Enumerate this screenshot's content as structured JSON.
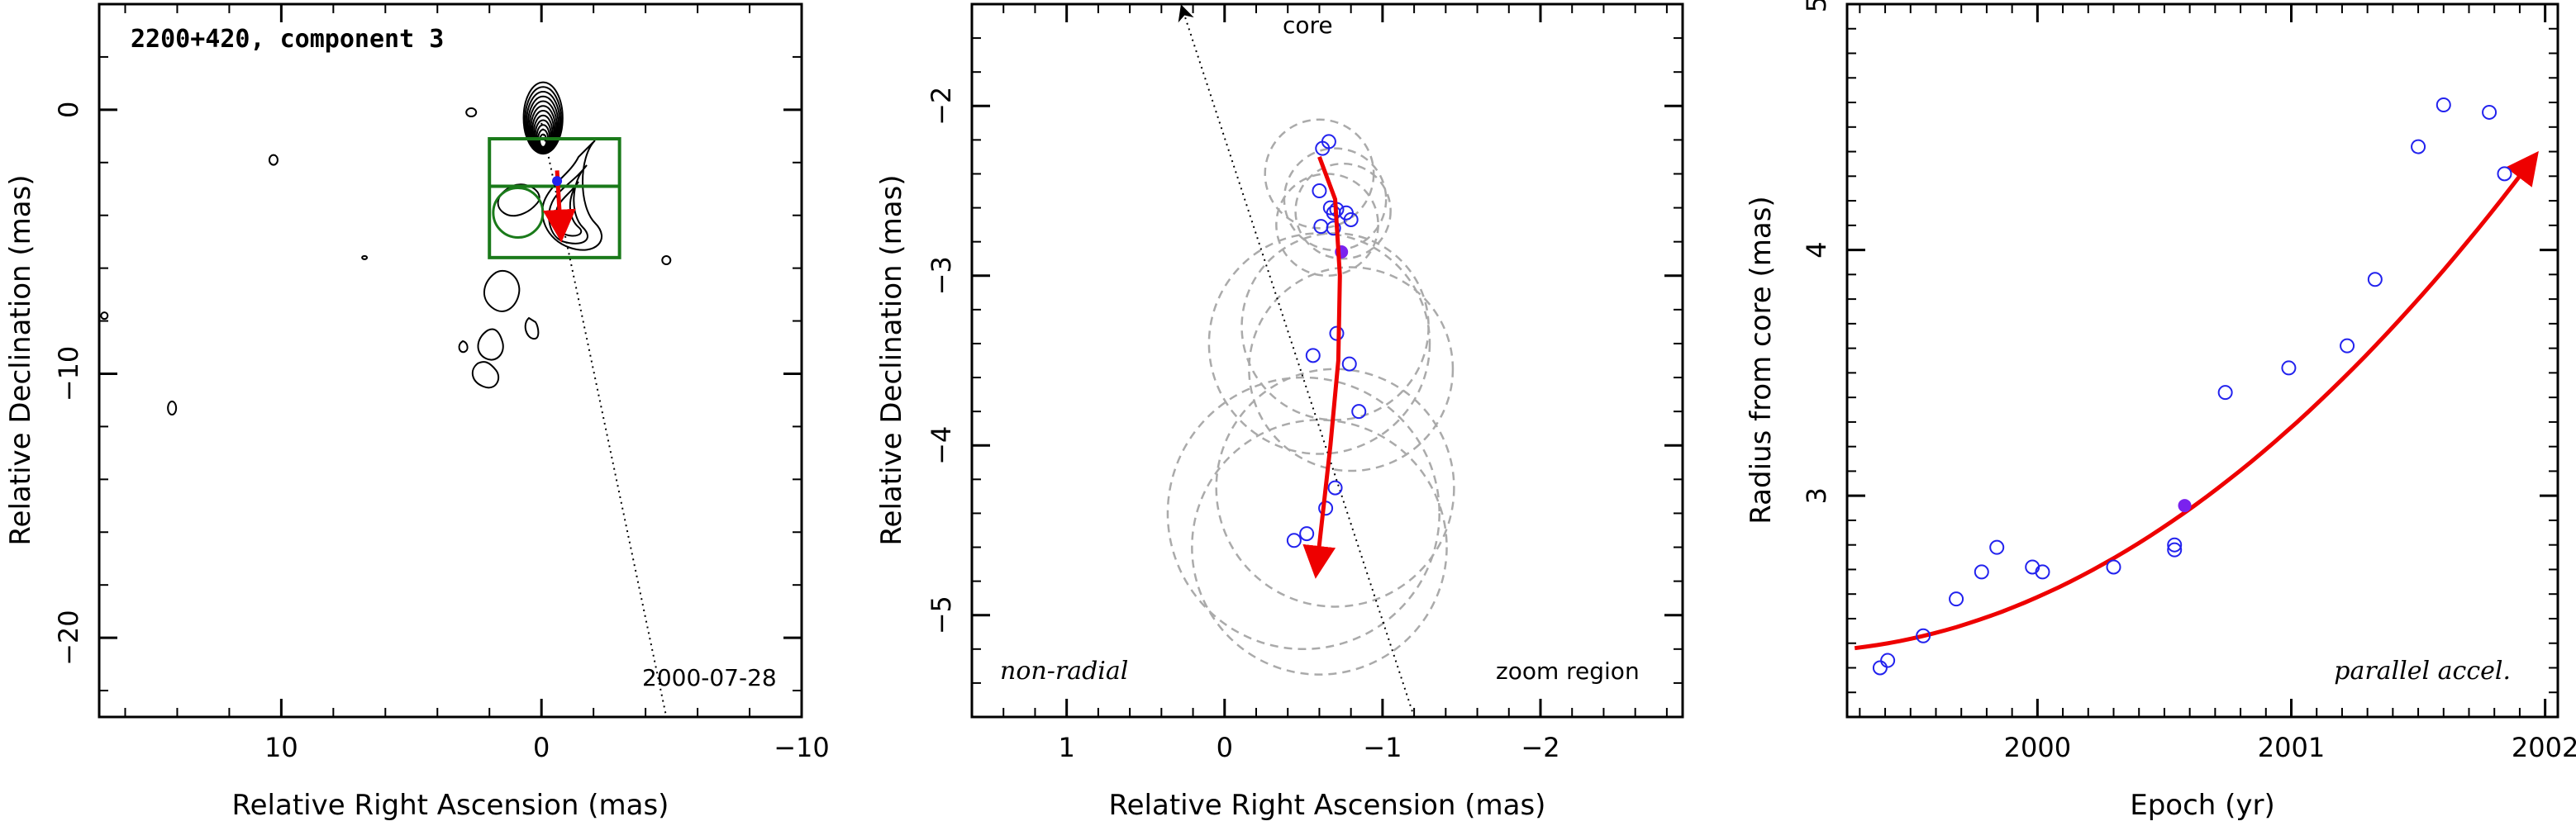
{
  "chart_data": [
    {
      "type": "contour",
      "title": "2200+420, component 3",
      "xlabel": "Relative Right Ascension (mas)",
      "ylabel": "Relative Declination (mas)",
      "xlim": [
        17,
        -10
      ],
      "ylim": [
        -23,
        4
      ],
      "xticks": [
        10,
        0,
        -10
      ],
      "yticks": [
        0,
        -10,
        -20
      ],
      "annotations": {
        "date": "2000-07-28"
      },
      "contour_peak": [
        0,
        0
      ],
      "zoom_box": {
        "x": [
          2,
          -3
        ],
        "y": [
          -1.1,
          -5.6
        ],
        "divider_y": -2.9
      },
      "core_line": {
        "x": [
          0.0,
          -4.8
        ],
        "y": [
          -0.5,
          -23
        ]
      },
      "track": {
        "start": [
          -0.6,
          -2.3
        ],
        "end": [
          -0.75,
          -4.8
        ]
      },
      "current_position": [
        -0.6,
        -2.7
      ]
    },
    {
      "type": "scatter",
      "xlabel": "Relative Right Ascension (mas)",
      "ylabel": "Relative Declination (mas)",
      "xlim": [
        1.6,
        -2.9
      ],
      "ylim": [
        -5.6,
        -1.4
      ],
      "xticks": [
        1,
        0,
        -1,
        -2
      ],
      "yticks": [
        -2,
        -3,
        -4,
        -5
      ],
      "annotations": {
        "left": "non-radial",
        "right": "zoom region",
        "arrow": "core"
      },
      "core_line": {
        "x": [
          0.27,
          -1.2
        ],
        "y": [
          -1.4,
          -5.6
        ]
      },
      "points": [
        {
          "x": -0.62,
          "y": -2.25
        },
        {
          "x": -0.66,
          "y": -2.21
        },
        {
          "x": -0.6,
          "y": -2.5
        },
        {
          "x": -0.67,
          "y": -2.6
        },
        {
          "x": -0.69,
          "y": -2.63
        },
        {
          "x": -0.71,
          "y": -2.61
        },
        {
          "x": -0.77,
          "y": -2.63
        },
        {
          "x": -0.8,
          "y": -2.67
        },
        {
          "x": -0.61,
          "y": -2.71
        },
        {
          "x": -0.69,
          "y": -2.72
        },
        {
          "x": -0.71,
          "y": -3.34
        },
        {
          "x": -0.56,
          "y": -3.47
        },
        {
          "x": -0.79,
          "y": -3.52
        },
        {
          "x": -0.85,
          "y": -3.8
        },
        {
          "x": -0.7,
          "y": -4.25
        },
        {
          "x": -0.64,
          "y": -4.37
        },
        {
          "x": -0.52,
          "y": -4.52
        },
        {
          "x": -0.44,
          "y": -4.56
        }
      ],
      "current_point": {
        "x": -0.74,
        "y": -2.86
      },
      "components": [
        {
          "x": -0.6,
          "y": -2.4,
          "r": 0.32
        },
        {
          "x": -0.7,
          "y": -2.55,
          "r": 0.3
        },
        {
          "x": -0.65,
          "y": -2.7,
          "r": 0.3
        },
        {
          "x": -0.75,
          "y": -2.62,
          "r": 0.28
        },
        {
          "x": -0.6,
          "y": -3.4,
          "r": 0.65
        },
        {
          "x": -0.8,
          "y": -3.55,
          "r": 0.6
        },
        {
          "x": -0.7,
          "y": -3.3,
          "r": 0.55
        },
        {
          "x": -0.5,
          "y": -4.4,
          "r": 0.8
        },
        {
          "x": -0.7,
          "y": -4.25,
          "r": 0.7
        },
        {
          "x": -0.6,
          "y": -4.6,
          "r": 0.75
        }
      ],
      "track": [
        [
          -0.6,
          -2.3
        ],
        [
          -0.7,
          -2.55
        ],
        [
          -0.73,
          -3.0
        ],
        [
          -0.72,
          -3.5
        ],
        [
          -0.67,
          -4.0
        ],
        [
          -0.58,
          -4.75
        ]
      ]
    },
    {
      "type": "scatter",
      "xlabel": "Epoch (yr)",
      "ylabel": "Radius from core (mas)",
      "xlim": [
        1999.25,
        2002.05
      ],
      "ylim": [
        2.1,
        5.0
      ],
      "xticks": [
        2000,
        2001,
        2002
      ],
      "yticks": [
        3,
        4,
        5
      ],
      "annotations": {
        "right": "parallel accel."
      },
      "points": [
        {
          "x": 1999.38,
          "y": 2.3
        },
        {
          "x": 1999.41,
          "y": 2.33
        },
        {
          "x": 1999.55,
          "y": 2.43
        },
        {
          "x": 1999.68,
          "y": 2.58
        },
        {
          "x": 1999.78,
          "y": 2.69
        },
        {
          "x": 1999.84,
          "y": 2.79
        },
        {
          "x": 1999.98,
          "y": 2.71
        },
        {
          "x": 2000.02,
          "y": 2.69
        },
        {
          "x": 2000.3,
          "y": 2.71
        },
        {
          "x": 2000.54,
          "y": 2.8
        },
        {
          "x": 2000.54,
          "y": 2.78
        },
        {
          "x": 2000.74,
          "y": 3.42
        },
        {
          "x": 2000.99,
          "y": 3.52
        },
        {
          "x": 2001.22,
          "y": 3.61
        },
        {
          "x": 2001.33,
          "y": 3.88
        },
        {
          "x": 2001.5,
          "y": 4.42
        },
        {
          "x": 2001.6,
          "y": 4.59
        },
        {
          "x": 2001.78,
          "y": 4.56
        },
        {
          "x": 2001.84,
          "y": 4.31
        }
      ],
      "current_point": {
        "x": 2000.58,
        "y": 2.96
      },
      "fit": {
        "x0": 1999.28,
        "x1": 2001.96,
        "y0": 2.38,
        "slope": 0.12,
        "curv": 0.234
      }
    }
  ]
}
